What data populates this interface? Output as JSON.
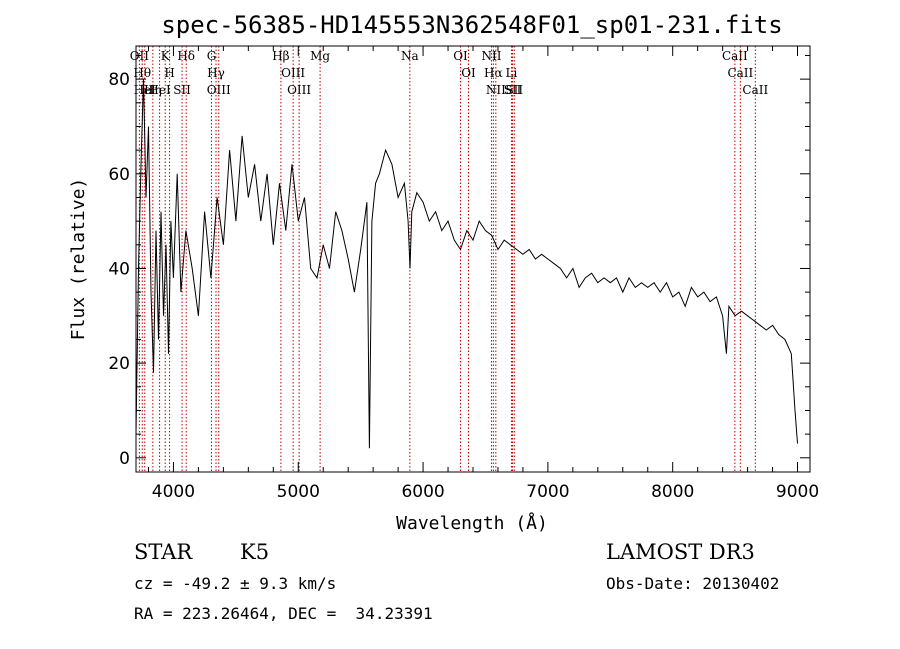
{
  "chart_data": {
    "type": "line",
    "title": "spec-56385-HD145553N362548F01_sp01-231.fits",
    "xlabel": "Wavelength (Å)",
    "ylabel": "Flux (relative)",
    "xlim": [
      3700,
      9100
    ],
    "ylim": [
      -3,
      87
    ],
    "x_ticks": [
      4000,
      5000,
      6000,
      7000,
      8000,
      9000
    ],
    "x_tick_labels": [
      "4000",
      "5000",
      "6000",
      "7000",
      "8000",
      "9000"
    ],
    "y_ticks": [
      0,
      20,
      40,
      60,
      80
    ],
    "y_tick_labels": [
      "0",
      "20",
      "40",
      "60",
      "80"
    ],
    "grid": false,
    "colors": {
      "spectrum": "#000000",
      "line_markers": "#c00000"
    },
    "series": [
      {
        "x": [
          3700,
          3720,
          3740,
          3760,
          3780,
          3800,
          3820,
          3840,
          3860,
          3880,
          3900,
          3920,
          3940,
          3960,
          3980,
          4000,
          4030,
          4060,
          4100,
          4150,
          4200,
          4250,
          4300,
          4350,
          4400,
          4450,
          4500,
          4550,
          4600,
          4650,
          4700,
          4750,
          4800,
          4850,
          4900,
          4950,
          5000,
          5050,
          5100,
          5150,
          5200,
          5250,
          5300,
          5350,
          5400,
          5450,
          5500,
          5550,
          5570,
          5590,
          5620,
          5650,
          5700,
          5750,
          5800,
          5850,
          5880,
          5895,
          5910,
          5950,
          6000,
          6050,
          6100,
          6150,
          6200,
          6250,
          6300,
          6350,
          6400,
          6450,
          6500,
          6550,
          6600,
          6650,
          6700,
          6750,
          6800,
          6850,
          6900,
          6950,
          7000,
          7050,
          7100,
          7150,
          7200,
          7250,
          7300,
          7350,
          7400,
          7450,
          7500,
          7550,
          7600,
          7650,
          7700,
          7750,
          7800,
          7850,
          7900,
          7950,
          8000,
          8050,
          8100,
          8150,
          8200,
          8250,
          8300,
          8350,
          8400,
          8430,
          8450,
          8500,
          8550,
          8600,
          8650,
          8700,
          8750,
          8800,
          8850,
          8900,
          8950,
          8980,
          9000
        ],
        "y": [
          5,
          40,
          62,
          80,
          55,
          70,
          35,
          18,
          48,
          25,
          52,
          30,
          45,
          22,
          50,
          38,
          60,
          35,
          48,
          40,
          30,
          52,
          38,
          55,
          45,
          65,
          50,
          68,
          55,
          62,
          50,
          60,
          45,
          58,
          48,
          62,
          50,
          55,
          40,
          38,
          45,
          40,
          52,
          48,
          42,
          35,
          44,
          54,
          2,
          50,
          58,
          60,
          65,
          62,
          55,
          58,
          50,
          40,
          52,
          56,
          54,
          50,
          52,
          48,
          50,
          46,
          44,
          48,
          46,
          50,
          48,
          47,
          44,
          46,
          45,
          44,
          43,
          44,
          42,
          43,
          42,
          41,
          40,
          38,
          40,
          36,
          38,
          39,
          37,
          38,
          37,
          38,
          35,
          38,
          36,
          37,
          36,
          37,
          35,
          37,
          34,
          35,
          32,
          36,
          34,
          35,
          33,
          34,
          30,
          22,
          32,
          30,
          31,
          30,
          29,
          28,
          27,
          28,
          26,
          25,
          22,
          10,
          3
        ]
      }
    ],
    "line_markers": [
      {
        "label": "OII",
        "x": 3727
      },
      {
        "label": "Hθ",
        "x": 3750
      },
      {
        "label": "HeI",
        "x": 3770
      },
      {
        "label": "Hη",
        "x": 3835
      },
      {
        "label": "HeI",
        "x": 3889
      },
      {
        "label": "K",
        "x": 3934
      },
      {
        "label": "H",
        "x": 3969
      },
      {
        "label": "SII",
        "x": 4069
      },
      {
        "label": "Hδ",
        "x": 4102
      },
      {
        "label": "G",
        "x": 4305
      },
      {
        "label": "Hγ",
        "x": 4341
      },
      {
        "label": "OIII",
        "x": 4363
      },
      {
        "label": "Hβ",
        "x": 4861
      },
      {
        "label": "OIII",
        "x": 4959
      },
      {
        "label": "OIII",
        "x": 5007
      },
      {
        "label": "Mg",
        "x": 5175
      },
      {
        "label": "Na",
        "x": 5894
      },
      {
        "label": "OI",
        "x": 6300
      },
      {
        "label": "OI",
        "x": 6364
      },
      {
        "label": "NII",
        "x": 6548
      },
      {
        "label": "Hα",
        "x": 6563
      },
      {
        "label": "NII",
        "x": 6583
      },
      {
        "label": "Li",
        "x": 6708
      },
      {
        "label": "SII",
        "x": 6717
      },
      {
        "label": "SII",
        "x": 6731
      },
      {
        "label": "CaII",
        "x": 8498
      },
      {
        "label": "CaII",
        "x": 8542
      },
      {
        "label": "CaII",
        "x": 8662
      }
    ]
  },
  "info": {
    "object_class": "STAR",
    "subclass": "K5",
    "survey": "LAMOST DR3",
    "redshift": "cz = -49.2 ± 9.3 km/s",
    "obs_date": "Obs-Date: 20130402",
    "coords": "RA = 223.26464, DEC =  34.23391"
  }
}
